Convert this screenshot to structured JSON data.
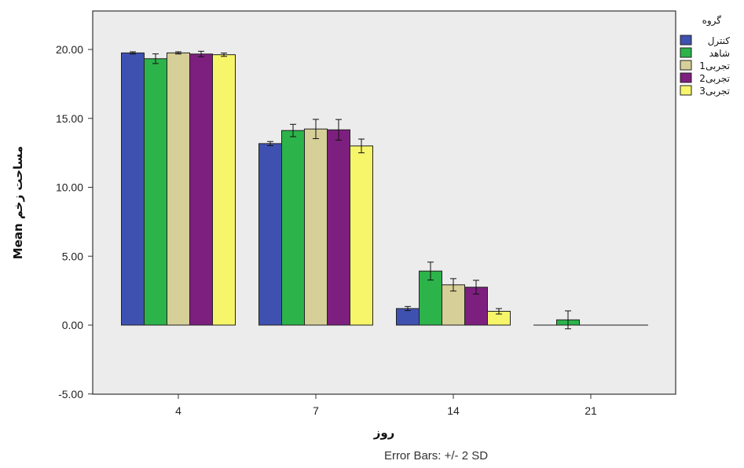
{
  "chart_data": {
    "type": "bar",
    "categories": [
      "4",
      "7",
      "14",
      "21"
    ],
    "series": [
      {
        "name": "کنترل",
        "color": "#3f51b0",
        "values": [
          19.75,
          13.17,
          1.2,
          0.0
        ],
        "sd2": [
          0.08,
          0.15,
          0.15,
          0.0
        ]
      },
      {
        "name": "شاهد",
        "color": "#2cb34a",
        "values": [
          19.33,
          14.12,
          3.92,
          0.38
        ],
        "sd2": [
          0.35,
          0.45,
          0.65,
          0.65
        ]
      },
      {
        "name": "تجربی1",
        "color": "#d6cf98",
        "values": [
          19.75,
          14.23,
          2.92,
          0.0
        ],
        "sd2": [
          0.08,
          0.7,
          0.45,
          0.0
        ]
      },
      {
        "name": "تجربی2",
        "color": "#7d1f7f",
        "values": [
          19.67,
          14.17,
          2.75,
          0.0
        ],
        "sd2": [
          0.2,
          0.75,
          0.5,
          0.0
        ]
      },
      {
        "name": "تجربی3",
        "color": "#f7f56a",
        "values": [
          19.62,
          13.0,
          1.0,
          0.0
        ],
        "sd2": [
          0.12,
          0.5,
          0.2,
          0.0
        ]
      }
    ],
    "yticks": [
      "-5.00",
      "0.00",
      "5.00",
      "10.00",
      "15.00",
      "20.00"
    ],
    "ytick_values": [
      -5,
      0,
      5,
      10,
      15,
      20
    ],
    "ylim": [
      -5,
      22.5
    ],
    "xlabel": "روز",
    "ylabel": "Mean مساحت زخم",
    "legend_title": "گروه",
    "legend_position": "right",
    "footnote": "Error Bars: +/- 2 SD",
    "plot_background": "#ececec",
    "grid": false
  }
}
